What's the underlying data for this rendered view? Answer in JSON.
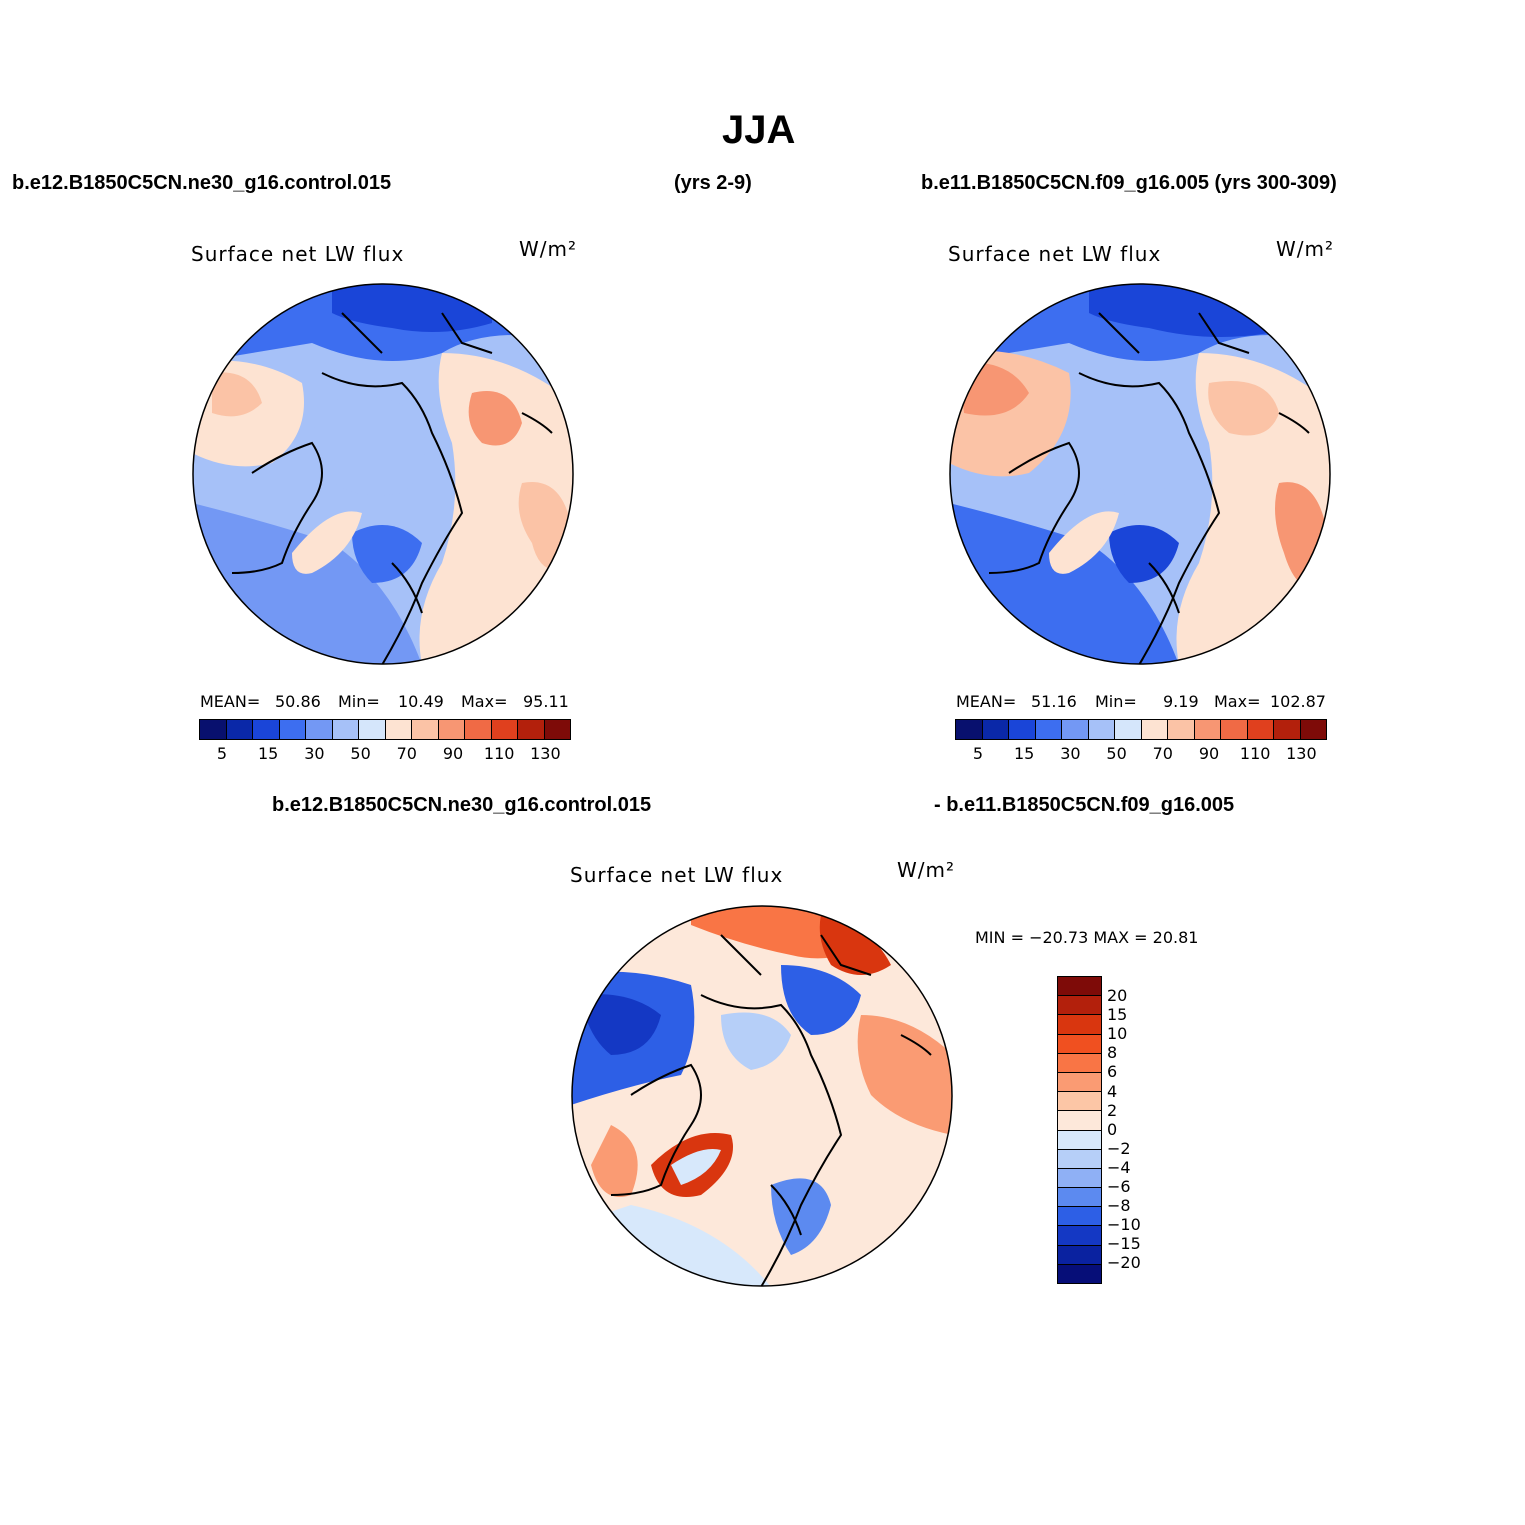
{
  "title": "JJA",
  "header": {
    "left": "b.e12.B1850C5CN.ne30_g16.control.015",
    "mid": "(yrs 2-9)",
    "right": "b.e11.B1850C5CN.f09_g16.005 (yrs 300-309)"
  },
  "diff_header": {
    "left": "b.e12.B1850C5CN.ne30_g16.control.015",
    "right": "- b.e11.B1850C5CN.f09_g16.005"
  },
  "panels": [
    {
      "variable": "Surface net LW flux",
      "units": "W/m²",
      "mean_label": "MEAN=",
      "mean": "50.86",
      "min_label": "Min=",
      "min": "10.49",
      "max_label": "Max=",
      "max": "95.11"
    },
    {
      "variable": "Surface net LW flux",
      "units": "W/m²",
      "mean_label": "MEAN=",
      "mean": "51.16",
      "min_label": "Min=",
      "min": "9.19",
      "max_label": "Max=",
      "max": "102.87"
    }
  ],
  "diff_panel": {
    "variable": "Surface net LW flux",
    "units": "W/m²",
    "minmax": "MIN = −20.73 MAX =   20.81"
  },
  "colorbar_abs": {
    "ticks": [
      "5",
      "15",
      "30",
      "50",
      "70",
      "90",
      "110",
      "130"
    ],
    "colors": [
      "#08106e",
      "#0a28a8",
      "#1a45d8",
      "#3d6ef0",
      "#7398f4",
      "#a6c1f8",
      "#d5e6fb",
      "#fde3d2",
      "#fbc3a6",
      "#f79673",
      "#f06a45",
      "#e0401e",
      "#b3200c",
      "#7e0b08"
    ]
  },
  "colorbar_diff": {
    "ticks": [
      "20",
      "15",
      "10",
      "8",
      "6",
      "4",
      "2",
      "0",
      "−2",
      "−4",
      "−6",
      "−8",
      "−10",
      "−15",
      "−20"
    ],
    "colors": [
      "#7e0b08",
      "#b3200c",
      "#d9360f",
      "#f05020",
      "#f97545",
      "#fa9b73",
      "#fcc6a6",
      "#fde8da",
      "#d7e8fb",
      "#b6cff8",
      "#8fb0f5",
      "#5c8af0",
      "#2d5fe6",
      "#1438c4",
      "#0a22a0",
      "#060e78"
    ]
  }
}
